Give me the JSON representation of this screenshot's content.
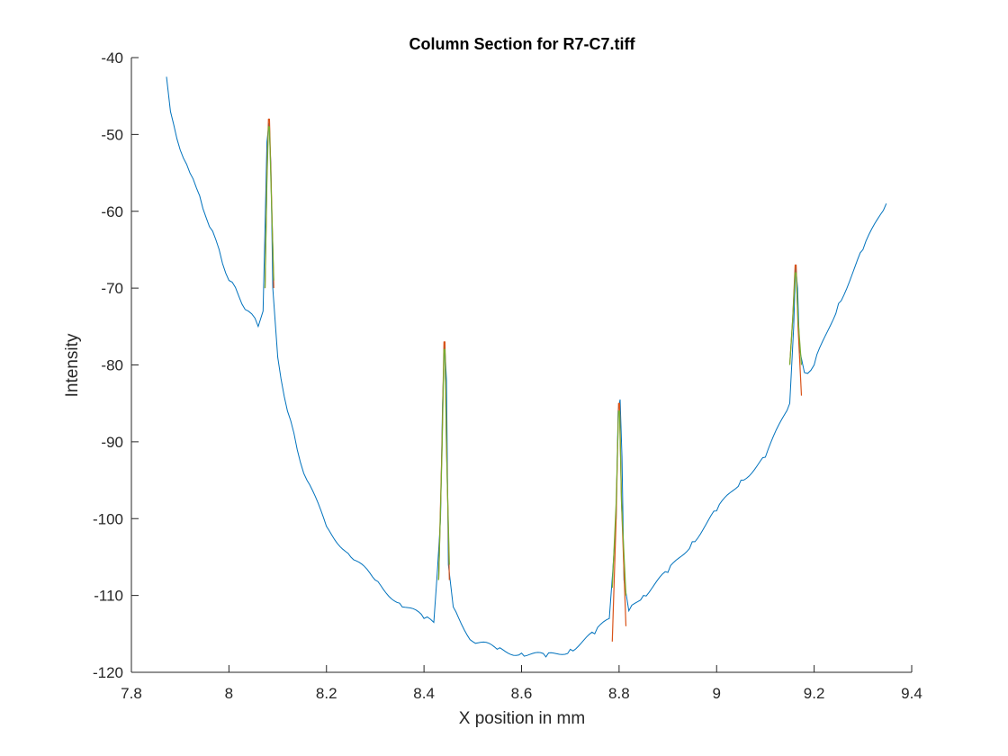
{
  "chart_data": {
    "type": "line",
    "title": "Column Section for R7-C7.tiff",
    "xlabel": "X position in mm",
    "ylabel": "Intensity",
    "xlim": [
      7.8,
      9.4
    ],
    "ylim": [
      -120,
      -40
    ],
    "xticks": [
      "7.8",
      "8",
      "8.2",
      "8.4",
      "8.6",
      "8.8",
      "9",
      "9.2",
      "9.4"
    ],
    "yticks": [
      "-40",
      "-50",
      "-60",
      "-70",
      "-80",
      "-90",
      "-100",
      "-110",
      "-120"
    ],
    "grid": false,
    "box": "left-bottom-only",
    "colors": {
      "section": "#0072BD",
      "fit_a": "#D95319",
      "fit_b": "#77AC30"
    },
    "series": [
      {
        "key": "section",
        "color": "#0072BD",
        "x": [
          7.872,
          7.88,
          7.9,
          7.92,
          7.94,
          7.96,
          7.98,
          8.0,
          8.02,
          8.04,
          8.06,
          8.07,
          8.074,
          8.078,
          8.082,
          8.086,
          8.09,
          8.1,
          8.12,
          8.14,
          8.16,
          8.2,
          8.25,
          8.3,
          8.35,
          8.4,
          8.42,
          8.434,
          8.438,
          8.442,
          8.446,
          8.45,
          8.46,
          8.5,
          8.55,
          8.6,
          8.65,
          8.7,
          8.75,
          8.78,
          8.794,
          8.798,
          8.802,
          8.806,
          8.81,
          8.82,
          8.85,
          8.9,
          8.95,
          9.0,
          9.05,
          9.1,
          9.15,
          9.158,
          9.162,
          9.166,
          9.17,
          9.18,
          9.2,
          9.25,
          9.3,
          9.348
        ],
        "y": [
          -42.5,
          -47,
          -52,
          -55,
          -58,
          -62,
          -65,
          -69,
          -71,
          -73,
          -75,
          -73,
          -62,
          -51,
          -48.5,
          -54,
          -70,
          -79,
          -86,
          -91,
          -95,
          -101,
          -105,
          -108,
          -111,
          -113,
          -113.5,
          -100,
          -85,
          -77,
          -82,
          -106,
          -111.5,
          -116,
          -117,
          -117.5,
          -118,
          -117,
          -115,
          -113,
          -100,
          -86,
          -84.5,
          -92,
          -108,
          -112,
          -110,
          -107,
          -103,
          -99,
          -95,
          -92,
          -85,
          -75,
          -67,
          -70,
          -78,
          -81,
          -80,
          -72,
          -65,
          -59
        ]
      },
      {
        "key": "fit_a",
        "color": "#D95319",
        "x": [
          8.074,
          8.078,
          8.081,
          8.083,
          8.086,
          8.092,
          8.43,
          8.437,
          8.441,
          8.443,
          8.446,
          8.452,
          8.786,
          8.794,
          8.799,
          8.801,
          8.805,
          8.814,
          9.15,
          9.156,
          9.161,
          9.163,
          9.167,
          9.174
        ],
        "y": [
          -70,
          -55,
          -48,
          -48,
          -55,
          -70,
          -108,
          -90,
          -77,
          -77,
          -90,
          -108,
          -116,
          -100,
          -85,
          -85,
          -98,
          -114,
          -80,
          -74,
          -67,
          -67,
          -75,
          -84
        ]
      },
      {
        "key": "fit_b",
        "color": "#77AC30",
        "x": [
          8.074,
          8.078,
          8.081,
          8.083,
          8.086,
          8.092,
          8.43,
          8.437,
          8.441,
          8.443,
          8.446,
          8.452,
          8.786,
          8.794,
          8.799,
          8.801,
          8.805,
          8.814,
          9.15,
          9.156,
          9.161,
          9.163,
          9.167,
          9.174
        ],
        "y": [
          -70,
          -56,
          -49,
          -49,
          -56,
          -69,
          -108,
          -91,
          -78,
          -78,
          -91,
          -106,
          -109,
          -98,
          -86,
          -86,
          -98,
          -110,
          -80,
          -74,
          -68,
          -68,
          -74,
          -80
        ]
      }
    ]
  }
}
